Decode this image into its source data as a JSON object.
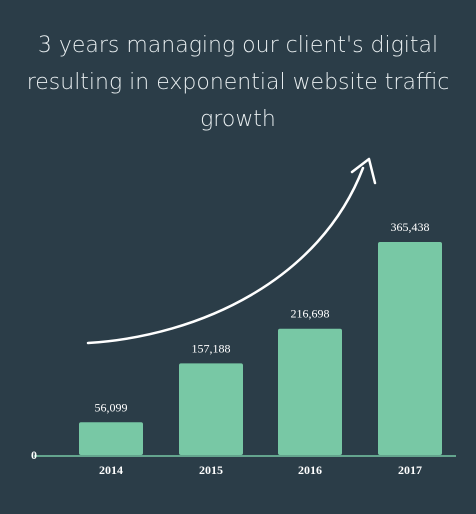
{
  "chart_data": {
    "type": "bar",
    "title": "3 years managing our client's digital resulting in exponential website traffic growth",
    "categories": [
      "2014",
      "2015",
      "2016",
      "2017"
    ],
    "values": [
      56099,
      157188,
      216698,
      365438
    ],
    "data_labels": [
      "56,099",
      "157,188",
      "216,698",
      "365,438"
    ],
    "y_tick_labels": [
      "0"
    ],
    "xlabel": "",
    "ylabel": "",
    "ylim": [
      0,
      365438
    ],
    "grid": false,
    "legend": "none",
    "annotations": [
      "upward-growth-arrow"
    ]
  },
  "colors": {
    "background": "#2b3d48",
    "bar": "#78c8a5",
    "text": "#ffffff",
    "title": "#e8eef0",
    "axis": "#78c8a5",
    "arrow": "#ffffff"
  }
}
